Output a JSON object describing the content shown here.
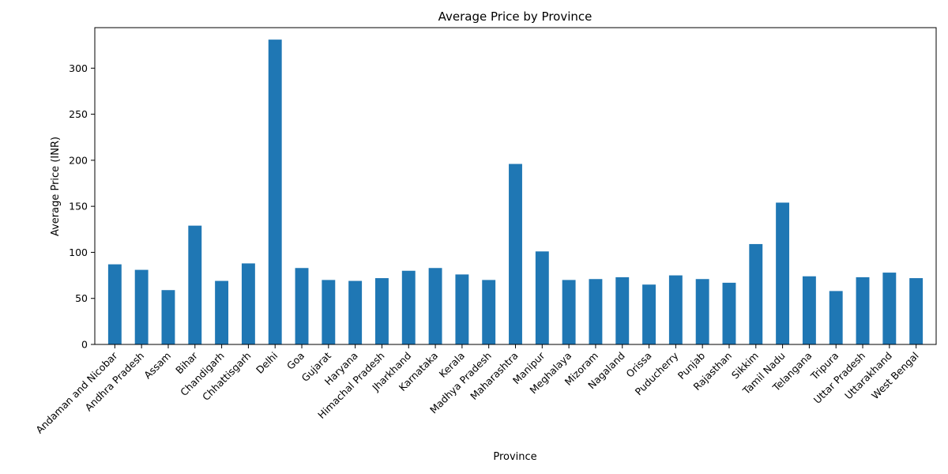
{
  "chart_data": {
    "type": "bar",
    "title": "Average Price by Province",
    "xlabel": "Province",
    "ylabel": "Average Price (INR)",
    "categories": [
      "Andaman and Nicobar",
      "Andhra Pradesh",
      "Assam",
      "Bihar",
      "Chandigarh",
      "Chhattisgarh",
      "Delhi",
      "Goa",
      "Gujarat",
      "Haryana",
      "Himachal Pradesh",
      "Jharkhand",
      "Karnataka",
      "Kerala",
      "Madhya Pradesh",
      "Maharashtra",
      "Manipur",
      "Meghalaya",
      "Mizoram",
      "Nagaland",
      "Orissa",
      "Puducherry",
      "Punjab",
      "Rajasthan",
      "Sikkim",
      "Tamil Nadu",
      "Telangana",
      "Tripura",
      "Uttar Pradesh",
      "Uttarakhand",
      "West Bengal"
    ],
    "values": [
      87,
      81,
      59,
      129,
      69,
      88,
      331,
      83,
      70,
      69,
      72,
      80,
      83,
      76,
      70,
      196,
      101,
      70,
      71,
      73,
      65,
      75,
      71,
      67,
      109,
      154,
      74,
      58,
      73,
      78,
      72
    ],
    "ylim": [
      0,
      344
    ],
    "yticks": [
      0,
      50,
      100,
      150,
      200,
      250,
      300
    ],
    "bar_color": "#1f77b4",
    "grid": false,
    "legend": "none"
  }
}
